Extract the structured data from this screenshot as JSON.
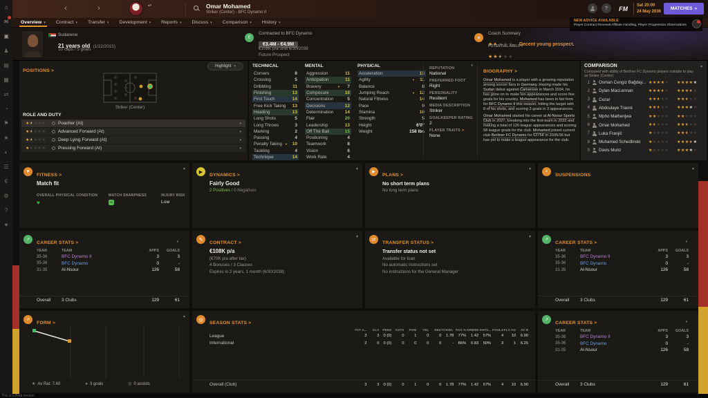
{
  "icons": {
    "chevron_down": "▾",
    "link_arrow": ">",
    "star": "★",
    "arrow_down": "▼",
    "double_arrow": "»",
    "up_down": "▴▾",
    "euro": "€",
    "question": "?",
    "minus": "−"
  },
  "meta": {
    "beta_note": "This is a Beta version"
  },
  "sidebar": {
    "icons": [
      {
        "n": "home-icon",
        "g": "⌂"
      },
      {
        "n": "inbox-icon",
        "g": "✉",
        "badge": true
      },
      {
        "n": "snapshot-icon",
        "g": "▣"
      },
      {
        "n": "squad-icon",
        "g": "♟"
      },
      {
        "n": "training-icon",
        "g": "▤"
      },
      {
        "n": "tactics-icon",
        "g": "▦"
      },
      {
        "n": "transfers-icon",
        "g": "⇄"
      },
      {
        "n": "scouting-icon",
        "g": "◔"
      },
      {
        "n": "club-icon",
        "g": "⚑"
      },
      {
        "n": "competitions-icon",
        "g": "★"
      },
      {
        "n": "world-icon",
        "g": "◐"
      },
      {
        "n": "news-icon",
        "g": "☰"
      },
      {
        "n": "finances-icon",
        "g": "€"
      },
      {
        "n": "settings-icon",
        "g": "⚙"
      },
      {
        "n": "help-icon",
        "g": "?"
      },
      {
        "n": "medical-icon",
        "g": "♥"
      }
    ]
  },
  "header": {
    "nav_back": "‹",
    "nav_forward": "›",
    "player_name": "Omar Mohamed",
    "player_subtitle": "Striker (Center) - BFC Dynamo II",
    "fm": "FM",
    "date_day": "Sat 20:00",
    "date_date": "24 May 2036",
    "matches": "MATCHES",
    "advice_title": "NEW ADVICE AVAILABLE",
    "advice_text": "Player Contract Renewal Affiliate Handling, Player Progression Observations",
    "tabs": [
      {
        "label": "Overview",
        "active": true
      },
      {
        "label": "Contract"
      },
      {
        "label": "Transfer"
      },
      {
        "label": "Development"
      },
      {
        "label": "Reports"
      },
      {
        "label": "Discuss"
      },
      {
        "label": "Comparison"
      },
      {
        "label": "History"
      }
    ]
  },
  "summary": {
    "nationality": "Sudanese",
    "age": "21 years old",
    "birthdate": "(1/22/2015)",
    "caps": "10 caps / 5 goals",
    "contract_club_line": "Contracted to BFC Dynamo",
    "value": "€3.4M - €4.9M",
    "wage_line": "€108K p/a until 6/30/2038",
    "prospect": "Future Prospect",
    "coach_title": "Coach Summary",
    "coach_comment": "Decent young prospect.",
    "current_ability_stars": 1.5,
    "potential_label": "POTENTIAL ABILITY",
    "potential_ability_stars": 2.5
  },
  "positions": {
    "title": "POSITIONS",
    "highlight": "Highlight",
    "pitch_caption": "Striker (Center)",
    "role_duty_label": "ROLE AND DUTY",
    "roles": [
      {
        "stars": 1.5,
        "name": "Poacher (At)"
      },
      {
        "stars": 1.5,
        "name": "Advanced Forward (At)"
      },
      {
        "stars": 1.5,
        "name": "Deep Lying Forward (At)"
      },
      {
        "stars": 1,
        "name": "Pressing Forward (At)"
      }
    ]
  },
  "attributes": {
    "sections": [
      {
        "label": "TECHNICAL",
        "cls": "technical",
        "rows": [
          {
            "name": "Corners",
            "value": 8
          },
          {
            "name": "Crossing",
            "value": 5
          },
          {
            "name": "Dribbling",
            "value": 11
          },
          {
            "name": "Finishing",
            "value": 13,
            "hl": "green"
          },
          {
            "name": "First Touch",
            "value": 14,
            "hl": "blue"
          },
          {
            "name": "Free Kick Taking",
            "value": 13
          },
          {
            "name": "Heading",
            "value": 13,
            "hl": "green"
          },
          {
            "name": "Long Shots",
            "value": 5
          },
          {
            "name": "Long Throws",
            "value": 3
          },
          {
            "name": "Marking",
            "value": 2
          },
          {
            "name": "Passing",
            "value": 4
          },
          {
            "name": "Penalty Taking",
            "value": 10,
            "arrow": true
          },
          {
            "name": "Tackling",
            "value": 4
          },
          {
            "name": "Technique",
            "value": 14,
            "hl": "blue"
          }
        ]
      },
      {
        "label": "MENTAL",
        "cls": "mental",
        "rows": [
          {
            "name": "Aggression",
            "value": 11
          },
          {
            "name": "Anticipation",
            "value": 11,
            "hl": "green"
          },
          {
            "name": "Bravery",
            "value": 7,
            "arrow": true
          },
          {
            "name": "Composure",
            "value": 10,
            "hl": "green"
          },
          {
            "name": "Concentration",
            "value": 5
          },
          {
            "name": "Decisions",
            "value": 12,
            "hl": "blue"
          },
          {
            "name": "Determination",
            "value": 14
          },
          {
            "name": "Flair",
            "value": 20
          },
          {
            "name": "Leadership",
            "value": 13
          },
          {
            "name": "Off The Ball",
            "value": 15,
            "hl": "green"
          },
          {
            "name": "Positioning",
            "value": 4
          },
          {
            "name": "Teamwork",
            "value": 8
          },
          {
            "name": "Vision",
            "value": 6
          },
          {
            "name": "Work Rate",
            "value": 4
          }
        ]
      },
      {
        "label": "PHYSICAL",
        "cls": "physical",
        "rows": [
          {
            "name": "Acceleration",
            "value": 13,
            "hl": "blue"
          },
          {
            "name": "Agility",
            "value": 11,
            "arrow": true
          },
          {
            "name": "Balance",
            "value": 8
          },
          {
            "name": "Jumping Reach",
            "value": 12,
            "arrow": true
          },
          {
            "name": "Natural Fitness",
            "value": 14
          },
          {
            "name": "Pace",
            "value": 9
          },
          {
            "name": "Stamina",
            "value": 10
          },
          {
            "name": "Strength",
            "value": 5
          },
          {
            "name": "Height",
            "value": "6'0\"",
            "plain": true
          },
          {
            "name": "Weight",
            "value": "158 lbs",
            "plain": true
          }
        ]
      }
    ]
  },
  "details": {
    "reputation_label": "REPUTATION",
    "reputation": "National",
    "preferred_foot_label": "PREFERRED FOOT",
    "preferred_foot": "Right",
    "personality_label": "PERSONALITY",
    "personality": "Resilient",
    "media_label": "MEDIA DESCRIPTION",
    "media": "Striker",
    "gk_label": "GOALKEEPER RATING",
    "gk": "2",
    "traits_label": "PLAYER TRAITS",
    "traits": "None"
  },
  "biography": {
    "title": "BIOGRAPHY",
    "paragraphs": [
      [
        {
          "t": "Omar Mohamed",
          "u": 1
        },
        {
          "t": " is a player with a growing reputation among soccer fans in "
        },
        {
          "t": "Germany",
          "u": 1
        },
        {
          "t": ". Having made his "
        },
        {
          "t": "Sudan",
          "u": 1
        },
        {
          "t": " debut against "
        },
        {
          "t": "Cameroon",
          "u": 1
        },
        {
          "t": " in March 2034, he has gone on to make ten appearances and score five goals for his country. "
        },
        {
          "t": "Mohamed",
          "u": 1
        },
        {
          "t": " has been in fair form for "
        },
        {
          "t": "BFC Dynamo II",
          "u": 1
        },
        {
          "t": " this season, hitting the target with 8 of his shots, and scoring 3 goals in 3 appearances."
        }
      ],
      [
        {
          "t": "Omar Mohamed",
          "u": 1
        },
        {
          "t": " started his career at "
        },
        {
          "t": "Al-Nsour Sports Club",
          "u": 1
        },
        {
          "t": " in 2027, breaking into the first-team in 2032 and making a total of 126 league appearances and scoring 58 league goals for the club. "
        },
        {
          "t": "Mohamed",
          "u": 1
        },
        {
          "t": " joined current club "
        },
        {
          "t": "Berliner FC Dynamo",
          "u": 1
        },
        {
          "t": " for €275K in 2035/36 but has yet to make a league appearance for the club."
        }
      ]
    ]
  },
  "comparison": {
    "title": "COMPARISON",
    "subtitle": "Compared with ability of Berliner FC Dynamo players suitable to play as Striker (Center)",
    "rows": [
      {
        "rank": "1",
        "name": "Osman Cengiz Bağday...",
        "ability": {
          "full": 4
        },
        "potential": {
          "full": 4,
          "white": 1
        }
      },
      {
        "rank": "2",
        "name": "Dylan MacLennan",
        "ability": {
          "full": 3,
          "half": true
        },
        "potential": {
          "full": 3,
          "half": true
        }
      },
      {
        "rank": "3",
        "name": "Cezar",
        "ability": {
          "full": 2,
          "half": true
        },
        "potential": {
          "full": 2,
          "half": true
        }
      },
      {
        "rank": "4",
        "name": "Abdoulaye Traoré",
        "ability": {
          "full": 2,
          "half": true
        },
        "potential": {
          "full": 3,
          "white": 1
        }
      },
      {
        "rank": "5",
        "name": "Mpho Mathenjwa",
        "ability": {
          "full": 2
        },
        "potential": {
          "full": 2
        }
      },
      {
        "rank": "6",
        "name": "Omar Mohamed",
        "ability": {
          "full": 1,
          "half": true
        },
        "potential": {
          "full": 2,
          "half": true
        }
      },
      {
        "rank": "7",
        "name": "Luka Franjić",
        "ability": {
          "full": 1
        },
        "potential": {
          "full": 2,
          "half": true
        }
      },
      {
        "rank": "8",
        "name": "Muhamed Schedlinski",
        "ability": {
          "full": 1
        },
        "potential": {
          "full": 3,
          "half": true,
          "white": 1
        }
      },
      {
        "rank": "9",
        "name": "Davis Munz",
        "ability": {
          "full": 1
        },
        "potential": {
          "full": 3,
          "white": 1
        }
      }
    ]
  },
  "panels": {
    "fitness": {
      "title": "FITNESS",
      "status": "Match fit",
      "col1": "OVERALL PHYSICAL CONDITION",
      "col2": "MATCH SHARPNESS",
      "col3": "INJURY RISK",
      "injury": "Low"
    },
    "dynamics": {
      "title": "DYNAMICS",
      "status": "Fairly Good",
      "positives": "2 Positives",
      "sep": " / ",
      "negatives": "0 Negatives"
    },
    "plans": {
      "title": "PLANS",
      "line1": "No short term plans",
      "line2": "No long term plans"
    },
    "suspensions": {
      "title": "SUSPENSIONS"
    },
    "contract": {
      "title": "CONTRACT",
      "wage": "€108K p/a",
      "after_tax": "(€70K p/a after tax)",
      "bonuses": "4 Bonuses / 3 Clauses",
      "expires": "Expires in 2 years, 1 month (6/30/2038)"
    },
    "transfer": {
      "title": "TRANSFER STATUS",
      "status": "Transfer status not set",
      "lines": [
        "Available for loan",
        "No automatic instructions set",
        "No instructions for the General Manager"
      ]
    },
    "form": {
      "title": "FORM",
      "av_rat": "Av Rat: 7.60",
      "av_icon": "★",
      "goals": "3 goals",
      "goals_icon": "●",
      "assists": "0 assists",
      "assists_icon": "◎"
    },
    "season": {
      "title": "SEASON STATS",
      "columns": [
        "TOT A...",
        "GLS",
        "PENS",
        "ASTS",
        "POM",
        "YEL",
        "RED",
        "TCKW/...",
        "PAS %",
        "DRB/90",
        "SHTS...",
        "FOULS",
        "FLS AG",
        "AV R"
      ],
      "rows": [
        {
          "name": "League",
          "values": [
            "3",
            "3",
            "0 (0)",
            "0",
            "1",
            "0",
            "0",
            "1.78",
            "77%",
            "1.42",
            "57%",
            "4",
            "10",
            "6.90"
          ]
        },
        {
          "name": "International",
          "values": [
            "2",
            "0",
            "0 (0)",
            "0",
            "0",
            "0",
            "0",
            "-",
            "86%",
            "0.83",
            "50%",
            "3",
            "1",
            "6.25"
          ]
        }
      ],
      "overall_label": "Overall (Club)",
      "overall": [
        "3",
        "3",
        "0 (0)",
        "0",
        "1",
        "0",
        "0",
        "1.78",
        "77%",
        "1.42",
        "57%",
        "4",
        "10",
        "6.90"
      ]
    }
  },
  "career": {
    "title": "CAREER STATS",
    "cols": {
      "year": "YEAR",
      "team": "TEAM",
      "apps": "APPS",
      "goals": "GOALS"
    },
    "rows": [
      {
        "year": "35-36",
        "team": "BFC Dynamo II",
        "color": "purple",
        "crest": "maroon",
        "apps": "3",
        "goals": "3"
      },
      {
        "year": "35-36",
        "team": "BFC Dynamo",
        "color": "blue",
        "crest": "maroon",
        "apps": "0",
        "goals": "-"
      },
      {
        "year": "31-35",
        "team": "Al-Nsour",
        "color": "white",
        "crest": "light",
        "apps": "126",
        "goals": "58"
      }
    ],
    "overall_label": "Overall",
    "overall_team": "3 Clubs",
    "overall_apps": "129",
    "overall_goals": "61"
  }
}
